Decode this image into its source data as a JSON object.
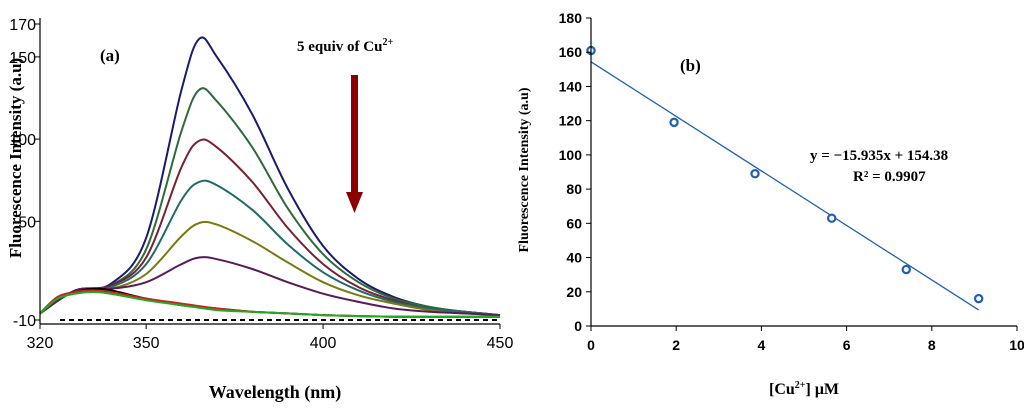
{
  "chart_data": [
    {
      "type": "line",
      "panel_label": "(a)",
      "xlabel": "Wavelength (nm)",
      "ylabel": "Fluorescence Intensity (a.u)",
      "xlim": [
        320,
        450
      ],
      "ylim": [
        -10,
        170
      ],
      "x_ticks": [
        320,
        350,
        400,
        450
      ],
      "y_ticks": [
        -10,
        50,
        100,
        150,
        170
      ],
      "annotation": "5 equiv of Cu",
      "annotation_sup": "2+",
      "arrow_color": "#8b0000",
      "baseline": {
        "y": -10,
        "style": "dashed",
        "color": "#000000"
      },
      "series": [
        {
          "name": "s1",
          "color": "#1a1a6e",
          "x": [
            320,
            330,
            340,
            350,
            360,
            365,
            370,
            380,
            390,
            400,
            410,
            420,
            430,
            440,
            450
          ],
          "y": [
            -6,
            8,
            12,
            40,
            130,
            161,
            150,
            115,
            70,
            35,
            15,
            4,
            -2,
            -5,
            -7
          ]
        },
        {
          "name": "s2",
          "color": "#2e6b3a",
          "x": [
            320,
            330,
            340,
            350,
            360,
            365,
            370,
            380,
            390,
            400,
            410,
            420,
            430,
            440,
            450
          ],
          "y": [
            -6,
            8,
            11,
            33,
            105,
            130,
            123,
            95,
            58,
            30,
            13,
            3,
            -2,
            -5,
            -7
          ]
        },
        {
          "name": "s3",
          "color": "#7a2030",
          "x": [
            320,
            330,
            340,
            350,
            360,
            365,
            370,
            380,
            390,
            400,
            410,
            420,
            430,
            440,
            450
          ],
          "y": [
            -6,
            8,
            11,
            28,
            83,
            99,
            95,
            74,
            46,
            24,
            10,
            2,
            -3,
            -5,
            -7
          ]
        },
        {
          "name": "s4",
          "color": "#1f6b6b",
          "x": [
            320,
            330,
            340,
            350,
            360,
            365,
            370,
            380,
            390,
            400,
            410,
            420,
            430,
            440,
            450
          ],
          "y": [
            -6,
            8,
            10,
            24,
            63,
            74,
            72,
            57,
            36,
            19,
            8,
            1,
            -3,
            -5,
            -7
          ]
        },
        {
          "name": "s5",
          "color": "#7a7a10",
          "x": [
            320,
            330,
            340,
            350,
            360,
            365,
            370,
            380,
            390,
            400,
            410,
            420,
            430,
            440,
            450
          ],
          "y": [
            -6,
            8,
            9,
            18,
            41,
            49,
            48,
            38,
            25,
            13,
            5,
            0,
            -4,
            -6,
            -7
          ]
        },
        {
          "name": "s6",
          "color": "#5a1a5a",
          "x": [
            320,
            330,
            340,
            350,
            360,
            365,
            370,
            380,
            390,
            400,
            410,
            420,
            430,
            440,
            450
          ],
          "y": [
            -6,
            8,
            9,
            13,
            24,
            28,
            27,
            21,
            13,
            6,
            1,
            -3,
            -5,
            -6,
            -7
          ]
        },
        {
          "name": "s7",
          "color": "#000000",
          "x": [
            320,
            325,
            330,
            335,
            340,
            350,
            360,
            370,
            380,
            390,
            400,
            420,
            450
          ],
          "y": [
            -6,
            4,
            7,
            9,
            8,
            3,
            -1,
            -3,
            -5,
            -6,
            -7,
            -8,
            -8
          ]
        },
        {
          "name": "s8",
          "color": "#cc2222",
          "x": [
            320,
            325,
            330,
            335,
            340,
            350,
            360,
            370,
            380,
            390,
            400,
            420,
            450
          ],
          "y": [
            -6,
            4,
            7,
            8,
            7,
            3,
            0,
            -3,
            -5,
            -6,
            -7,
            -8,
            -8
          ]
        },
        {
          "name": "s9",
          "color": "#22aa22",
          "x": [
            320,
            325,
            330,
            335,
            340,
            350,
            360,
            370,
            380,
            390,
            400,
            420,
            450
          ],
          "y": [
            -6,
            3,
            6,
            7,
            6,
            2,
            -1,
            -4,
            -5,
            -6,
            -7,
            -8,
            -8
          ]
        }
      ]
    },
    {
      "type": "scatter",
      "panel_label": "(b)",
      "xlabel": "[Cu",
      "xlabel_sup": "2+",
      "xlabel_suffix": "] μM",
      "ylabel": "Fluorescence Intensity  (a.u)",
      "xlim": [
        0,
        10
      ],
      "ylim": [
        0,
        180
      ],
      "x_ticks": [
        0,
        2,
        4,
        6,
        8,
        10
      ],
      "y_ticks": [
        0,
        20,
        40,
        60,
        80,
        100,
        120,
        140,
        160,
        180
      ],
      "points_color": "#1f5fb4",
      "x": [
        0,
        1.95,
        3.85,
        5.65,
        7.4,
        9.1
      ],
      "y": [
        161,
        119,
        89,
        63,
        33,
        16
      ],
      "trendline": {
        "slope": -15.935,
        "intercept": 154.38,
        "x_range": [
          0,
          9.1
        ],
        "color": "#1f5fb4"
      },
      "equation": "y = −15.935x + 154.38",
      "r_squared": "R² = 0.9907"
    }
  ]
}
